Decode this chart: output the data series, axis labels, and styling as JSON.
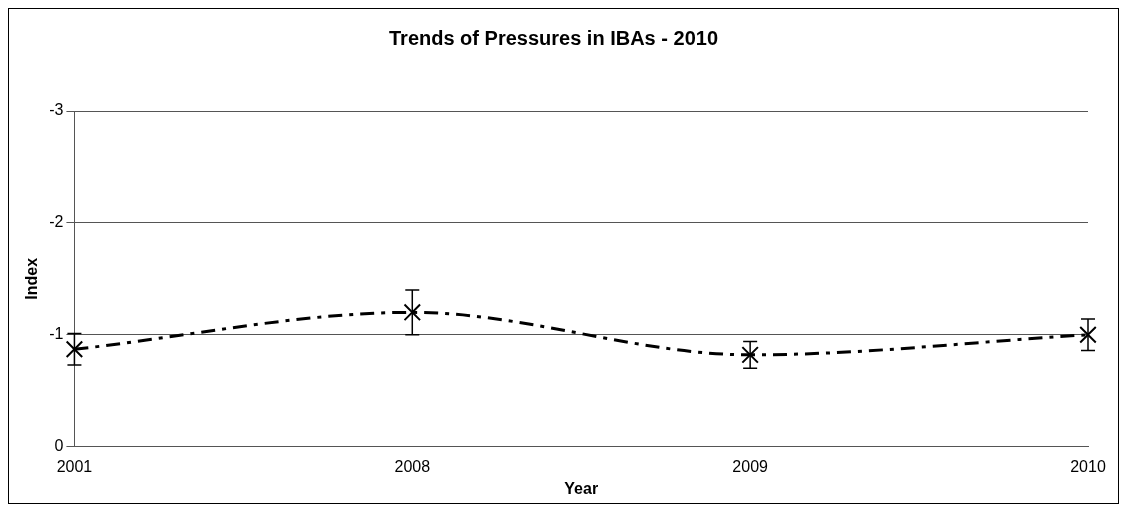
{
  "chart_data": {
    "type": "line",
    "title": "Trends of Pressures in IBAs - 2010",
    "xlabel": "Year",
    "ylabel": "Index",
    "categories": [
      "2001",
      "2008",
      "2009",
      "2010"
    ],
    "series": [
      {
        "color": "#000000",
        "values": [
          -0.87,
          -1.2,
          -0.82,
          -1.0
        ],
        "errors": [
          0.14,
          0.2,
          0.12,
          0.14
        ]
      }
    ],
    "ylim": [
      0,
      -3
    ],
    "yticks": [
      0,
      -1,
      -2,
      -3
    ],
    "grid": "y",
    "legend": false,
    "marker": "cross",
    "line_style": "dashed"
  }
}
